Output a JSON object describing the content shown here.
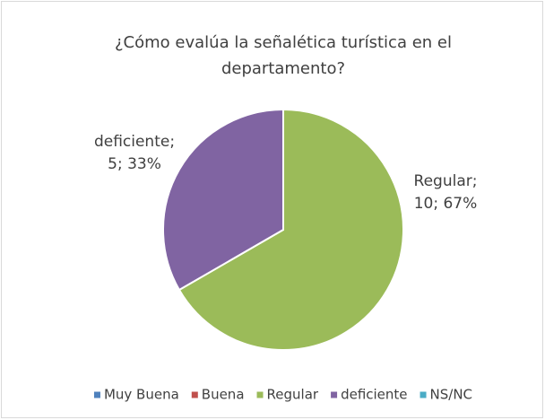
{
  "chart_data": {
    "type": "pie",
    "title": "¿Cómo evalúa la señalética turística en el departamento?",
    "categories": [
      "Muy Buena",
      "Buena",
      "Regular",
      "deficiente",
      "NS/NC"
    ],
    "values": [
      0,
      0,
      10,
      5,
      0
    ],
    "value_labels": [
      null,
      null,
      [
        "Regular;",
        "10; 67%"
      ],
      [
        "deficiente;",
        "5; 33%"
      ],
      null
    ],
    "colors": [
      "#4f81bd",
      "#c0504d",
      "#9bbb59",
      "#8064a2",
      "#4bacc6"
    ],
    "legend": "bottom"
  }
}
